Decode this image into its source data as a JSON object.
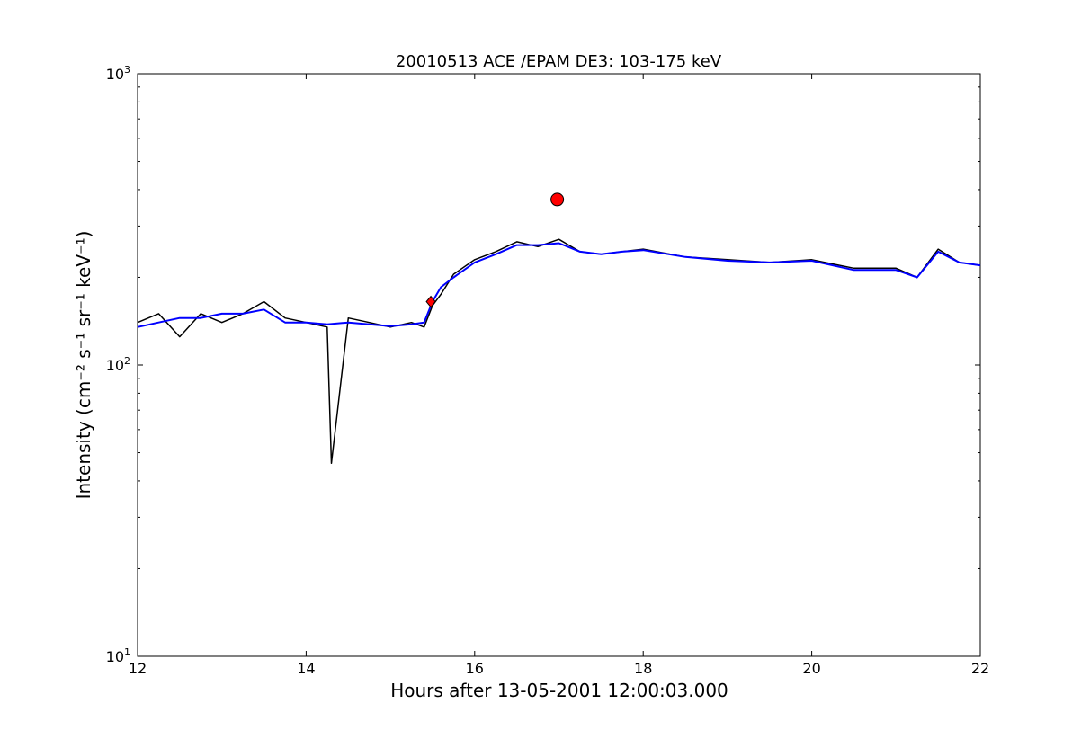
{
  "chart_data": {
    "type": "line",
    "title": "20010513 ACE /EPAM DE3: 103-175 keV",
    "xlabel": "Hours after 13-05-2001 12:00:03.000",
    "ylabel": "Intensity (cm⁻² s⁻¹ sr⁻¹ keV⁻¹)",
    "xlim": [
      12,
      22
    ],
    "ylim": [
      10,
      1000
    ],
    "yscale": "log",
    "grid": false,
    "x_ticks": [
      12,
      14,
      16,
      18,
      20,
      22
    ],
    "x_tick_labels": [
      "12",
      "14",
      "16",
      "18",
      "20",
      "22"
    ],
    "y_ticks": [
      10,
      100,
      1000
    ],
    "y_tick_base": "10",
    "y_tick_exponents": [
      "1",
      "2",
      "3"
    ],
    "series": [
      {
        "kind": "raw",
        "color": "#000000",
        "x": [
          12.0,
          12.25,
          12.5,
          12.75,
          13.0,
          13.25,
          13.5,
          13.75,
          14.0,
          14.25,
          14.3,
          14.5,
          14.75,
          15.0,
          15.25,
          15.4,
          15.5,
          15.6,
          15.75,
          16.0,
          16.25,
          16.5,
          16.75,
          17.0,
          17.25,
          17.5,
          17.75,
          18.0,
          18.5,
          19.0,
          19.5,
          20.0,
          20.5,
          21.0,
          21.25,
          21.5,
          21.75,
          22.0
        ],
        "y": [
          140,
          150,
          125,
          150,
          140,
          150,
          165,
          145,
          140,
          135,
          46,
          145,
          140,
          135,
          140,
          135,
          160,
          175,
          205,
          230,
          245,
          265,
          255,
          270,
          245,
          240,
          245,
          250,
          235,
          230,
          225,
          230,
          215,
          215,
          200,
          250,
          225,
          220
        ]
      },
      {
        "kind": "smoothed",
        "color": "#0000ff",
        "x": [
          12.0,
          12.25,
          12.5,
          12.75,
          13.0,
          13.25,
          13.5,
          13.75,
          14.0,
          14.25,
          14.5,
          14.75,
          15.0,
          15.25,
          15.4,
          15.5,
          15.6,
          15.75,
          16.0,
          16.25,
          16.5,
          16.75,
          17.0,
          17.25,
          17.5,
          17.75,
          18.0,
          18.5,
          19.0,
          19.5,
          20.0,
          20.5,
          21.0,
          21.25,
          21.5,
          21.75,
          22.0
        ],
        "y": [
          135,
          140,
          145,
          145,
          150,
          150,
          155,
          140,
          140,
          138,
          140,
          138,
          136,
          138,
          140,
          165,
          185,
          200,
          225,
          240,
          258,
          258,
          262,
          245,
          240,
          245,
          248,
          235,
          228,
          225,
          228,
          212,
          212,
          200,
          245,
          225,
          220
        ]
      }
    ],
    "markers": [
      {
        "x": 15.48,
        "y": 165,
        "color": "#ff0000",
        "shape": "diamond"
      },
      {
        "x": 16.98,
        "y": 370,
        "color": "#ff0000",
        "shape": "circle"
      }
    ]
  }
}
